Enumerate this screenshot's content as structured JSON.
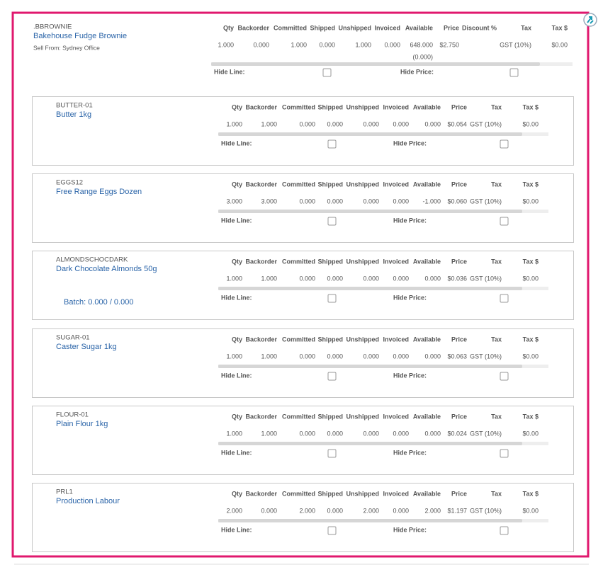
{
  "item": {
    "code": ".BBROWNIE",
    "name": "Bakehouse Fudge Brownie",
    "sell_from": "Sell From: Sydney Office",
    "columns": [
      {
        "header": "Qty",
        "value": "1.000"
      },
      {
        "header": "Backorder",
        "value": "0.000"
      },
      {
        "header": "Committed",
        "value": "1.000"
      },
      {
        "header": "Shipped",
        "value": "0.000"
      },
      {
        "header": "Unshipped",
        "value": "1.000"
      },
      {
        "header": "Invoiced",
        "value": "0.000"
      },
      {
        "header": "Available",
        "value": "648.000",
        "sub": "(0.000)"
      },
      {
        "header": "Price",
        "value": "$2.750"
      },
      {
        "header": "Discount %"
      },
      {
        "header": "Tax",
        "value": "GST (10%)"
      },
      {
        "header": "Tax $",
        "value": "$0.00"
      }
    ],
    "hide_line": "Hide Line:",
    "hide_price": "Hide Price:"
  },
  "components": [
    {
      "code": "BUTTER-01",
      "name": "Butter 1kg",
      "columns": [
        {
          "header": "Qty",
          "value": "1.000"
        },
        {
          "header": "Backorder",
          "value": "1.000"
        },
        {
          "header": "Committed",
          "value": "0.000"
        },
        {
          "header": "Shipped",
          "value": "0.000"
        },
        {
          "header": "Unshipped",
          "value": "0.000"
        },
        {
          "header": "Invoiced",
          "value": "0.000"
        },
        {
          "header": "Available",
          "value": "0.000"
        },
        {
          "header": "Price",
          "value": "$0.054"
        },
        {
          "header": "Tax",
          "value": "GST (10%)"
        },
        {
          "header": "Tax $",
          "value": "$0.00"
        }
      ],
      "hide_line": "Hide Line:",
      "hide_price": "Hide Price:"
    },
    {
      "code": "EGGS12",
      "name": "Free Range Eggs Dozen",
      "columns": [
        {
          "header": "Qty",
          "value": "3.000"
        },
        {
          "header": "Backorder",
          "value": "3.000"
        },
        {
          "header": "Committed",
          "value": "0.000"
        },
        {
          "header": "Shipped",
          "value": "0.000"
        },
        {
          "header": "Unshipped",
          "value": "0.000"
        },
        {
          "header": "Invoiced",
          "value": "0.000"
        },
        {
          "header": "Available",
          "value": "-1.000"
        },
        {
          "header": "Price",
          "value": "$0.060"
        },
        {
          "header": "Tax",
          "value": "GST (10%)"
        },
        {
          "header": "Tax $",
          "value": "$0.00"
        }
      ],
      "hide_line": "Hide Line:",
      "hide_price": "Hide Price:"
    },
    {
      "code": "ALMONDSCHOCDARK",
      "name": "Dark Chocolate Almonds 50g",
      "batch": "Batch: 0.000 / 0.000",
      "columns": [
        {
          "header": "Qty",
          "value": "1.000"
        },
        {
          "header": "Backorder",
          "value": "1.000"
        },
        {
          "header": "Committed",
          "value": "0.000"
        },
        {
          "header": "Shipped",
          "value": "0.000"
        },
        {
          "header": "Unshipped",
          "value": "0.000"
        },
        {
          "header": "Invoiced",
          "value": "0.000"
        },
        {
          "header": "Available",
          "value": "0.000"
        },
        {
          "header": "Price",
          "value": "$0.036"
        },
        {
          "header": "Tax",
          "value": "GST (10%)"
        },
        {
          "header": "Tax $",
          "value": "$0.00"
        }
      ],
      "hide_line": "Hide Line:",
      "hide_price": "Hide Price:"
    },
    {
      "code": "SUGAR-01",
      "name": "Caster Sugar 1kg",
      "columns": [
        {
          "header": "Qty",
          "value": "1.000"
        },
        {
          "header": "Backorder",
          "value": "1.000"
        },
        {
          "header": "Committed",
          "value": "0.000"
        },
        {
          "header": "Shipped",
          "value": "0.000"
        },
        {
          "header": "Unshipped",
          "value": "0.000"
        },
        {
          "header": "Invoiced",
          "value": "0.000"
        },
        {
          "header": "Available",
          "value": "0.000"
        },
        {
          "header": "Price",
          "value": "$0.063"
        },
        {
          "header": "Tax",
          "value": "GST (10%)"
        },
        {
          "header": "Tax $",
          "value": "$0.00"
        }
      ],
      "hide_line": "Hide Line:",
      "hide_price": "Hide Price:"
    },
    {
      "code": "FLOUR-01",
      "name": "Plain Flour 1kg",
      "columns": [
        {
          "header": "Qty",
          "value": "1.000"
        },
        {
          "header": "Backorder",
          "value": "1.000"
        },
        {
          "header": "Committed",
          "value": "0.000"
        },
        {
          "header": "Shipped",
          "value": "0.000"
        },
        {
          "header": "Unshipped",
          "value": "0.000"
        },
        {
          "header": "Invoiced",
          "value": "0.000"
        },
        {
          "header": "Available",
          "value": "0.000"
        },
        {
          "header": "Price",
          "value": "$0.024"
        },
        {
          "header": "Tax",
          "value": "GST (10%)"
        },
        {
          "header": "Tax $",
          "value": "$0.00"
        }
      ],
      "hide_line": "Hide Line:",
      "hide_price": "Hide Price:"
    },
    {
      "code": "PRL1",
      "name": "Production Labour",
      "columns": [
        {
          "header": "Qty",
          "value": "2.000"
        },
        {
          "header": "Backorder",
          "value": "0.000"
        },
        {
          "header": "Committed",
          "value": "2.000"
        },
        {
          "header": "Shipped",
          "value": "0.000"
        },
        {
          "header": "Unshipped",
          "value": "2.000"
        },
        {
          "header": "Invoiced",
          "value": "0.000"
        },
        {
          "header": "Available",
          "value": "2.000"
        },
        {
          "header": "Price",
          "value": "$1.197"
        },
        {
          "header": "Tax",
          "value": "GST (10%)"
        },
        {
          "header": "Tax $",
          "value": "$0.00"
        }
      ],
      "hide_line": "Hide Line:",
      "hide_price": "Hide Price:"
    }
  ]
}
